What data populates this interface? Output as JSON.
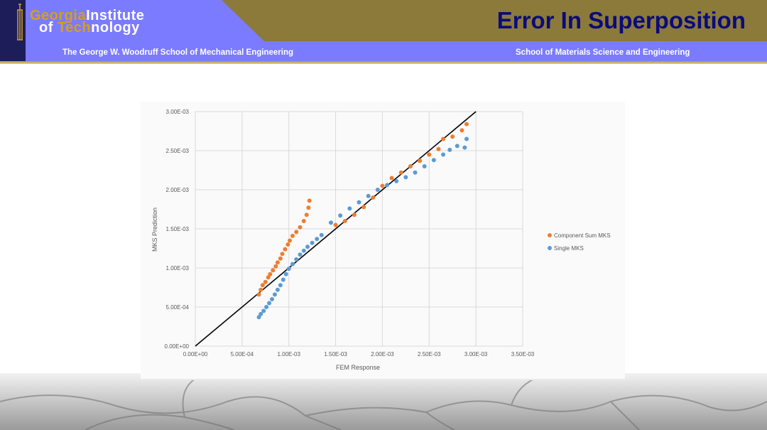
{
  "header": {
    "logo_line1_gold": "Georgia",
    "logo_line1_white": "Institute",
    "logo_line2_white_a": "of ",
    "logo_line2_gold": "Tech",
    "logo_line2_white_b": "nology",
    "slide_title": "Error In Superposition",
    "school_left": "The George W. Woodruff School of Mechanical Engineering",
    "school_right": "School of Materials Science and Engineering"
  },
  "colors": {
    "header_blue": "#7b7bff",
    "header_olive": "#8b7a3a",
    "title_navy": "#0b0b7a",
    "accent_gold": "#d4a017",
    "series_orange": "#ed7d31",
    "series_blue": "#5b9bd5"
  },
  "chart_data": {
    "type": "scatter",
    "xlabel": "FEM Response",
    "ylabel": "MKS Prediction",
    "xlim": [
      0,
      0.0035
    ],
    "ylim": [
      0,
      0.003
    ],
    "xticks": [
      "0.00E+00",
      "5.00E-04",
      "1.00E-03",
      "1.50E-03",
      "2.00E-03",
      "2.50E-03",
      "3.00E-03",
      "3.50E-03"
    ],
    "yticks": [
      "0.00E+00",
      "5.00E-04",
      "1.00E-03",
      "1.50E-03",
      "2.00E-03",
      "2.50E-03",
      "3.00E-03"
    ],
    "grid": true,
    "legend_position": "right",
    "reference_line": {
      "x": [
        0,
        0.003
      ],
      "y": [
        0,
        0.003
      ],
      "color": "#000000"
    },
    "series": [
      {
        "name": "Component Sum MKS",
        "color": "#ed7d31",
        "points": [
          [
            0.00068,
            0.00066
          ],
          [
            0.0007,
            0.00072
          ],
          [
            0.00072,
            0.00078
          ],
          [
            0.00075,
            0.00082
          ],
          [
            0.00078,
            0.00088
          ],
          [
            0.0008,
            0.00092
          ],
          [
            0.00083,
            0.00097
          ],
          [
            0.00086,
            0.00102
          ],
          [
            0.00088,
            0.00107
          ],
          [
            0.00091,
            0.00112
          ],
          [
            0.00093,
            0.00118
          ],
          [
            0.00096,
            0.00124
          ],
          [
            0.00099,
            0.0013
          ],
          [
            0.00101,
            0.00135
          ],
          [
            0.00104,
            0.00141
          ],
          [
            0.00108,
            0.00146
          ],
          [
            0.00112,
            0.00152
          ],
          [
            0.00116,
            0.0016
          ],
          [
            0.00119,
            0.00168
          ],
          [
            0.00121,
            0.00177
          ],
          [
            0.00122,
            0.00186
          ],
          [
            0.0015,
            0.00155
          ],
          [
            0.0016,
            0.0016
          ],
          [
            0.0017,
            0.00168
          ],
          [
            0.0018,
            0.00178
          ],
          [
            0.0019,
            0.0019
          ],
          [
            0.002,
            0.00205
          ],
          [
            0.0021,
            0.00215
          ],
          [
            0.0022,
            0.00222
          ],
          [
            0.0023,
            0.0023
          ],
          [
            0.0024,
            0.00237
          ],
          [
            0.0025,
            0.00245
          ],
          [
            0.0026,
            0.00252
          ],
          [
            0.00265,
            0.00265
          ],
          [
            0.00275,
            0.00268
          ],
          [
            0.00285,
            0.00276
          ],
          [
            0.0029,
            0.00284
          ]
        ]
      },
      {
        "name": "Single MKS",
        "color": "#5b9bd5",
        "points": [
          [
            0.00068,
            0.00037
          ],
          [
            0.0007,
            0.00041
          ],
          [
            0.00073,
            0.00045
          ],
          [
            0.00076,
            0.0005
          ],
          [
            0.00079,
            0.00055
          ],
          [
            0.00082,
            0.0006
          ],
          [
            0.00085,
            0.00066
          ],
          [
            0.00088,
            0.00072
          ],
          [
            0.00091,
            0.00078
          ],
          [
            0.00094,
            0.00085
          ],
          [
            0.00097,
            0.00092
          ],
          [
            0.001,
            0.00099
          ],
          [
            0.00104,
            0.00105
          ],
          [
            0.00108,
            0.00111
          ],
          [
            0.00112,
            0.00117
          ],
          [
            0.00116,
            0.00122
          ],
          [
            0.0012,
            0.00127
          ],
          [
            0.00125,
            0.00132
          ],
          [
            0.0013,
            0.00137
          ],
          [
            0.00135,
            0.00142
          ],
          [
            0.00145,
            0.00158
          ],
          [
            0.00155,
            0.00167
          ],
          [
            0.00165,
            0.00176
          ],
          [
            0.00175,
            0.00184
          ],
          [
            0.00185,
            0.00192
          ],
          [
            0.00195,
            0.002
          ],
          [
            0.00205,
            0.00206
          ],
          [
            0.00215,
            0.00211
          ],
          [
            0.00225,
            0.00216
          ],
          [
            0.00235,
            0.00222
          ],
          [
            0.00245,
            0.0023
          ],
          [
            0.00255,
            0.00238
          ],
          [
            0.00265,
            0.00245
          ],
          [
            0.00272,
            0.00251
          ],
          [
            0.0028,
            0.00256
          ],
          [
            0.00288,
            0.00254
          ],
          [
            0.0029,
            0.00265
          ]
        ]
      }
    ]
  }
}
